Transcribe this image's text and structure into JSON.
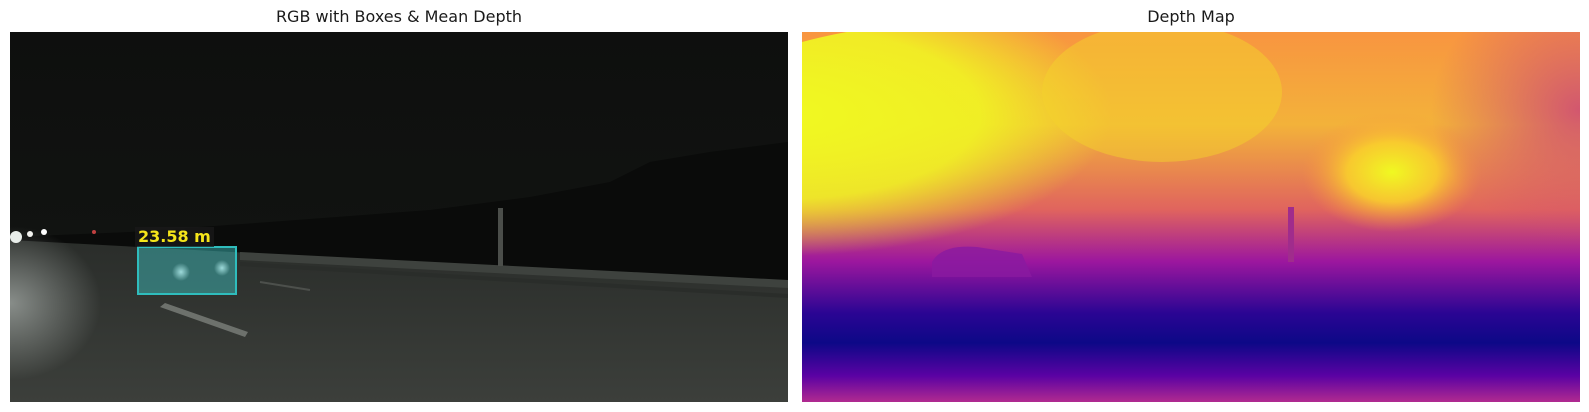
{
  "panels": [
    {
      "title": "RGB with Boxes & Mean Depth"
    },
    {
      "title": "Depth Map"
    }
  ],
  "detections": [
    {
      "label": "23.58 m",
      "color": "#2fbdbd",
      "label_color": "#f5e51a"
    }
  ],
  "colormap": {
    "name": "plasma",
    "colors": [
      "#0d0887",
      "#7e03a8",
      "#cc4778",
      "#f89540",
      "#f0f921"
    ]
  }
}
